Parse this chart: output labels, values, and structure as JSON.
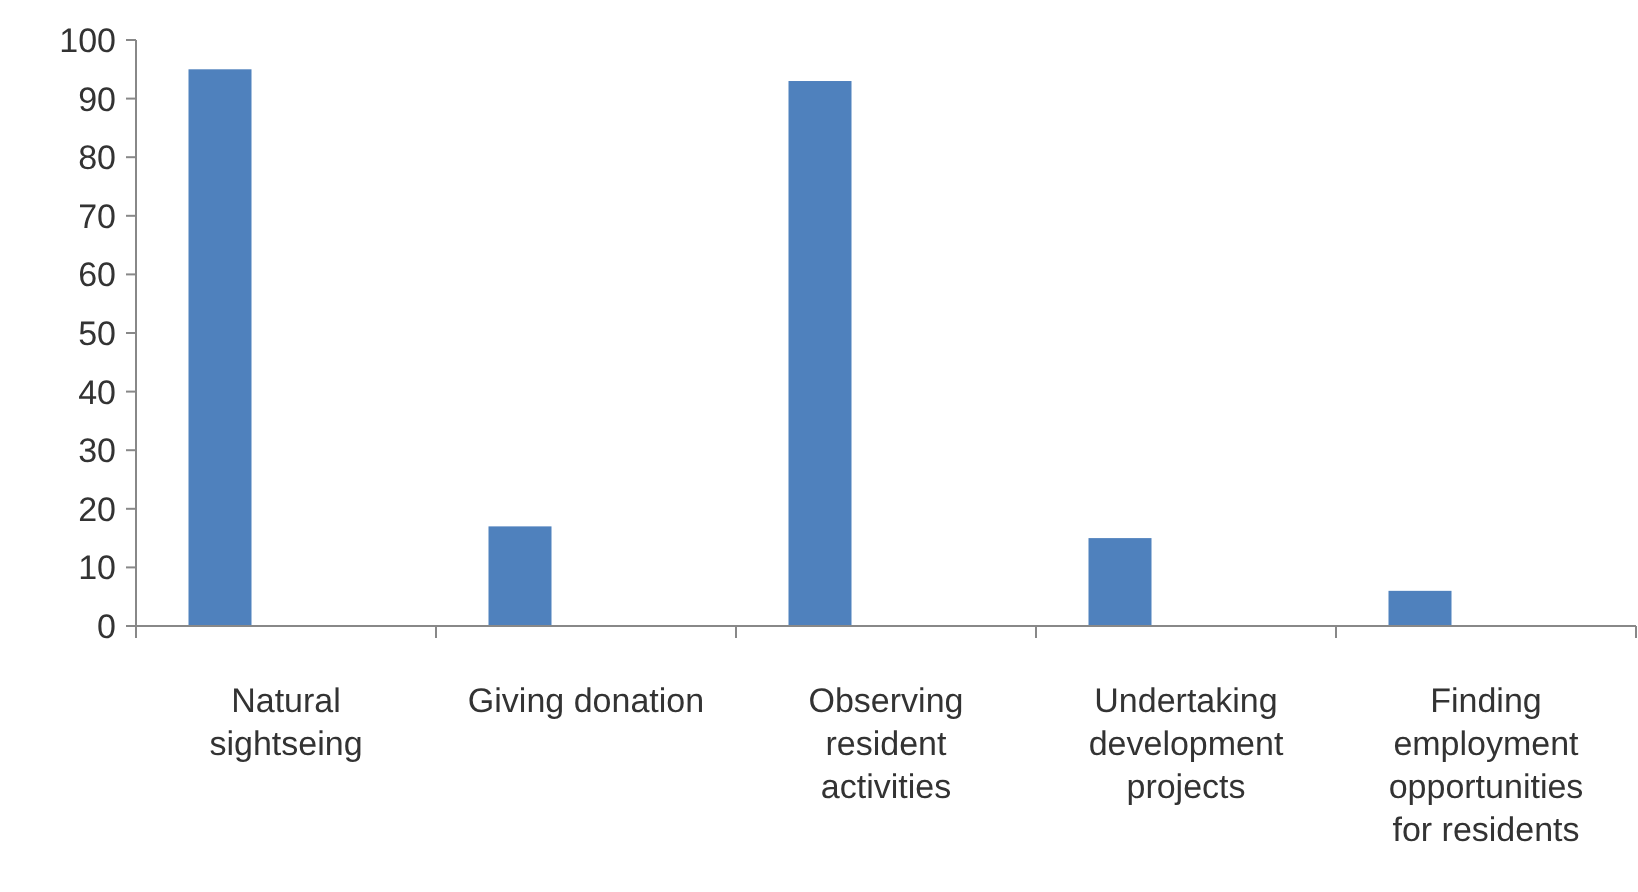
{
  "chart_data": {
    "type": "bar",
    "categories": [
      "Natural sightseing",
      "Giving donation",
      "Observing resident activities",
      "Undertaking development projects",
      "Finding employment opportunities for residents"
    ],
    "values": [
      95,
      17,
      93,
      15,
      6
    ],
    "color": "#4f81bd",
    "ylim": [
      0,
      100
    ],
    "yticks": [
      0,
      10,
      20,
      30,
      40,
      50,
      60,
      70,
      80,
      90,
      100
    ]
  }
}
